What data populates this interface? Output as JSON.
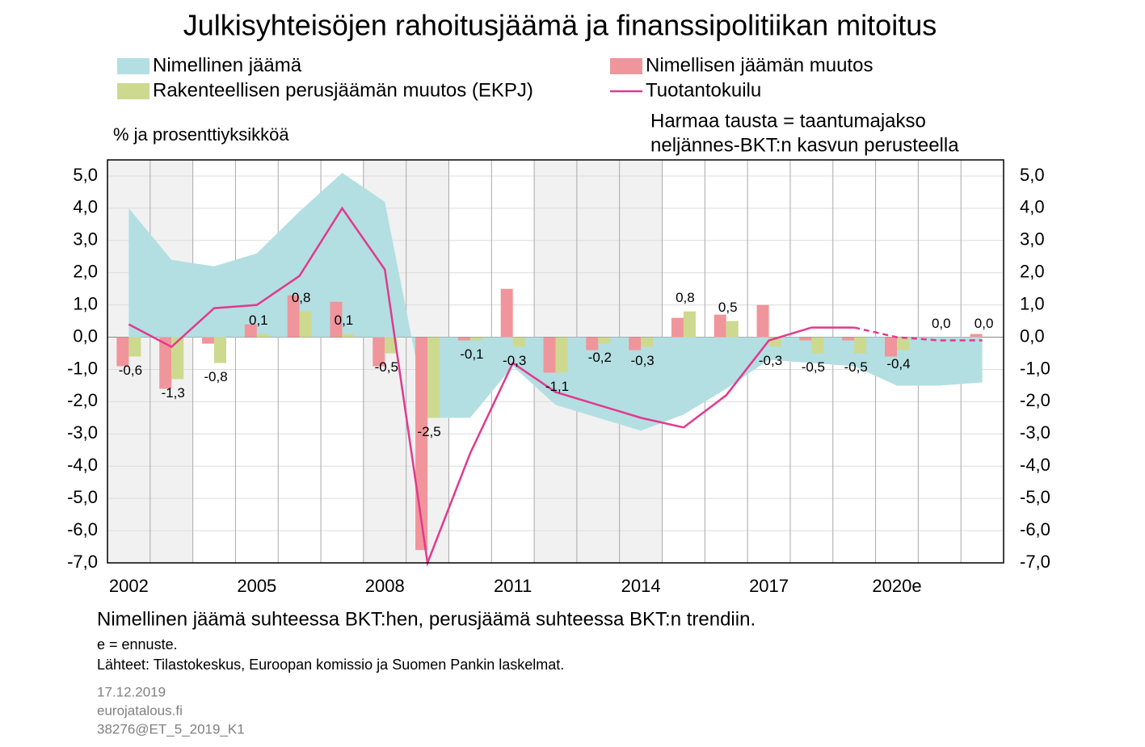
{
  "chart_data": {
    "type": "combo",
    "title": "Julkisyhteisöjen rahoitusjäämä ja finanssipolitiikan mitoitus",
    "y_label": "% ja prosenttiyksikköä",
    "note": [
      "Harmaa tausta = taantumajakso",
      "neljännes-BKT:n kasvun perusteella"
    ],
    "footnotes": [
      "Nimellinen jäämä suhteessa BKT:hen, perusjäämä suhteessa BKT:n trendiin.",
      "e = ennuste.",
      "Lähteet: Tilastokeskus, Euroopan komissio ja Suomen Pankin laskelmat."
    ],
    "source": [
      "17.12.2019",
      "eurojatalous.fi",
      "38276@ET_5_2019_K1"
    ],
    "categories": [
      "2002",
      null,
      null,
      "2005",
      null,
      null,
      "2008",
      null,
      null,
      "2011",
      null,
      null,
      "2014",
      null,
      null,
      "2017",
      null,
      null,
      "2020e",
      null,
      null
    ],
    "series": [
      {
        "name": "Nimellinen jäämä",
        "kind": "area",
        "color": "#b3dfe2",
        "values": [
          4.0,
          2.4,
          2.2,
          2.6,
          3.9,
          5.1,
          4.2,
          -2.5,
          -2.5,
          -0.9,
          -2.1,
          -2.5,
          -2.9,
          -2.4,
          -1.6,
          -0.7,
          -0.8,
          -0.9,
          -1.5,
          -1.5,
          -1.4
        ]
      },
      {
        "name": "Nimellisen jäämän muutos",
        "kind": "bar",
        "color": "#f0959b",
        "values": [
          -0.9,
          -1.6,
          -0.2,
          0.4,
          1.3,
          1.1,
          -0.9,
          -6.6,
          -0.1,
          1.5,
          -1.1,
          -0.4,
          -0.4,
          0.6,
          0.7,
          1.0,
          -0.1,
          -0.1,
          -0.6,
          0.0,
          0.1
        ]
      },
      {
        "name": "Rakenteellisen perusjäämän muutos (EKPJ)",
        "kind": "bar",
        "color": "#cdd98f",
        "values": [
          -0.6,
          -1.3,
          -0.8,
          0.1,
          0.8,
          0.1,
          -0.5,
          -2.5,
          -0.1,
          -0.3,
          -1.1,
          -0.2,
          -0.3,
          0.8,
          0.5,
          -0.3,
          -0.5,
          -0.5,
          -0.4,
          0.0,
          0.0
        ],
        "value_labels": [
          "-0,6",
          "-1,3",
          "-0,8",
          "0,1",
          "0,8",
          "0,1",
          "-0,5",
          "-2,5",
          "-0,1",
          "-0,3",
          "-1,1",
          "-0,2",
          "-0,3",
          "0,8",
          "0,5",
          "-0,3",
          "-0,5",
          "-0,5",
          "-0,4",
          "0,0",
          "0,0"
        ]
      },
      {
        "name": "Tuotantokuilu",
        "kind": "line",
        "color": "#e2398e",
        "dashed_from_index": 17,
        "values": [
          0.4,
          -0.3,
          0.9,
          1.0,
          1.9,
          4.0,
          2.1,
          -7.0,
          -3.6,
          -0.8,
          -1.7,
          -2.1,
          -2.5,
          -2.8,
          -1.8,
          -0.1,
          0.3,
          0.3,
          0.0,
          -0.1,
          -0.1
        ]
      }
    ],
    "ylim": [
      -7,
      5.5
    ],
    "yticks": [
      {
        "value": 5,
        "label": "5,0"
      },
      {
        "value": 4,
        "label": "4,0"
      },
      {
        "value": 3,
        "label": "3,0"
      },
      {
        "value": 2,
        "label": "2,0"
      },
      {
        "value": 1,
        "label": "1,0"
      },
      {
        "value": 0,
        "label": "0,0"
      },
      {
        "value": -1,
        "label": "-1,0"
      },
      {
        "value": -2,
        "label": "-2,0"
      },
      {
        "value": -3,
        "label": "-3,0"
      },
      {
        "value": -4,
        "label": "-4,0"
      },
      {
        "value": -5,
        "label": "-5,0"
      },
      {
        "value": -6,
        "label": "-6,0"
      },
      {
        "value": -7,
        "label": "-7,0"
      }
    ],
    "grid": true
  }
}
